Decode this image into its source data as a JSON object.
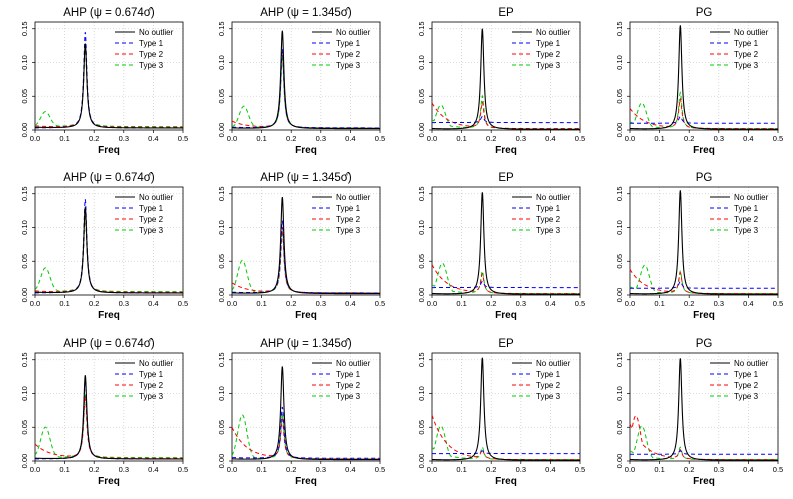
{
  "figure": {
    "rows": 3,
    "cols": 4,
    "xlabel": "Freq",
    "xlim": [
      0,
      0.5
    ],
    "ylim": [
      0,
      0.16
    ],
    "xticks": [
      "0.0",
      "0.1",
      "0.2",
      "0.3",
      "0.4",
      "0.5"
    ],
    "yticks": [
      "0.00",
      "0.05",
      "0.10",
      "0.15"
    ],
    "legend": [
      "No outlier",
      "Type 1",
      "Type 2",
      "Type 3"
    ],
    "colors": {
      "No outlier": "#000000",
      "Type 1": "#0000ff",
      "Type 2": "#ff0000",
      "Type 3": "#00cc00"
    },
    "grid": "dotted",
    "legend_position": "top-right"
  },
  "titles": {
    "ahp1": "AHP (ψ = 0.674σ̂)",
    "ahp2": "AHP (ψ = 1.345σ̂)",
    "ep": "EP",
    "pg": "PG"
  },
  "chart_data": [
    {
      "type": "line",
      "method": "ahp1",
      "row": 1,
      "title": "AHP (ψ = 0.674σ̂)",
      "xlabel": "Freq",
      "ylim": [
        0,
        0.16
      ],
      "xlim": [
        0,
        0.5
      ],
      "peak_freq": 0.17,
      "series": [
        {
          "name": "No outlier",
          "peak": 0.128,
          "base": 0.004,
          "end": 0.003
        },
        {
          "name": "Type 1",
          "peak": 0.145,
          "base": 0.003,
          "end": 0.003
        },
        {
          "name": "Type 2",
          "peak": 0.13,
          "base": 0.006,
          "end": 0.004
        },
        {
          "name": "Type 3",
          "peak": 0.12,
          "base": 0.005,
          "low_bump": [
            0.035,
            0.022
          ],
          "end": 0.005
        }
      ]
    },
    {
      "type": "line",
      "method": "ahp2",
      "row": 1,
      "title": "AHP (ψ = 1.345σ̂)",
      "xlabel": "Freq",
      "ylim": [
        0,
        0.16
      ],
      "xlim": [
        0,
        0.5
      ],
      "peak_freq": 0.17,
      "series": [
        {
          "name": "No outlier",
          "peak": 0.147,
          "base": 0.003,
          "end": 0.002
        },
        {
          "name": "Type 1",
          "peak": 0.12,
          "base": 0.004,
          "end": 0.003
        },
        {
          "name": "Type 2",
          "peak": 0.115,
          "base": 0.013,
          "end": 0.003
        },
        {
          "name": "Type 3",
          "peak": 0.11,
          "base": 0.006,
          "low_bump": [
            0.04,
            0.032
          ],
          "end": 0.003
        }
      ]
    },
    {
      "type": "line",
      "method": "ep",
      "row": 1,
      "title": "EP",
      "xlabel": "Freq",
      "ylim": [
        0,
        0.16
      ],
      "xlim": [
        0,
        0.5
      ],
      "peak_freq": 0.17,
      "series": [
        {
          "name": "No outlier",
          "peak": 0.15,
          "base": 0.002,
          "end": 0.001
        },
        {
          "name": "Type 1",
          "peak": 0.02,
          "base": 0.011,
          "end": 0.011
        },
        {
          "name": "Type 2",
          "peak": 0.04,
          "base": 0.04,
          "end": 0.002
        },
        {
          "name": "Type 3",
          "peak": 0.05,
          "base": 0.015,
          "low_bump": [
            0.03,
            0.035
          ],
          "end": 0.002
        }
      ]
    },
    {
      "type": "line",
      "method": "pg",
      "row": 1,
      "title": "PG",
      "xlabel": "Freq",
      "ylim": [
        0,
        0.16
      ],
      "xlim": [
        0,
        0.5
      ],
      "peak_freq": 0.17,
      "series": [
        {
          "name": "No outlier",
          "peak": 0.155,
          "base": 0.002,
          "end": 0.001
        },
        {
          "name": "Type 1",
          "peak": 0.02,
          "base": 0.01,
          "end": 0.01
        },
        {
          "name": "Type 2",
          "peak": 0.045,
          "base": 0.032,
          "end": 0.002
        },
        {
          "name": "Type 3",
          "peak": 0.055,
          "base": 0.012,
          "low_bump": [
            0.04,
            0.038
          ],
          "end": 0.002
        }
      ]
    },
    {
      "type": "line",
      "method": "ahp1",
      "row": 2,
      "title": "AHP (ψ = 0.674σ̂)",
      "xlabel": "Freq",
      "ylim": [
        0,
        0.16
      ],
      "xlim": [
        0,
        0.5
      ],
      "peak_freq": 0.17,
      "series": [
        {
          "name": "No outlier",
          "peak": 0.13,
          "base": 0.004,
          "end": 0.003
        },
        {
          "name": "Type 1",
          "peak": 0.142,
          "base": 0.003,
          "end": 0.003
        },
        {
          "name": "Type 2",
          "peak": 0.125,
          "base": 0.006,
          "end": 0.004
        },
        {
          "name": "Type 3",
          "peak": 0.115,
          "base": 0.006,
          "low_bump": [
            0.035,
            0.035
          ],
          "end": 0.005
        }
      ]
    },
    {
      "type": "line",
      "method": "ahp2",
      "row": 2,
      "title": "AHP (ψ = 1.345σ̂)",
      "xlabel": "Freq",
      "ylim": [
        0,
        0.16
      ],
      "xlim": [
        0,
        0.5
      ],
      "peak_freq": 0.17,
      "series": [
        {
          "name": "No outlier",
          "peak": 0.145,
          "base": 0.003,
          "end": 0.002
        },
        {
          "name": "Type 1",
          "peak": 0.11,
          "base": 0.004,
          "end": 0.003
        },
        {
          "name": "Type 2",
          "peak": 0.1,
          "base": 0.018,
          "end": 0.003
        },
        {
          "name": "Type 3",
          "peak": 0.095,
          "base": 0.007,
          "low_bump": [
            0.035,
            0.048
          ],
          "end": 0.003
        }
      ]
    },
    {
      "type": "line",
      "method": "ep",
      "row": 2,
      "title": "EP",
      "xlabel": "Freq",
      "ylim": [
        0,
        0.16
      ],
      "xlim": [
        0,
        0.5
      ],
      "peak_freq": 0.17,
      "series": [
        {
          "name": "No outlier",
          "peak": 0.152,
          "base": 0.002,
          "end": 0.001
        },
        {
          "name": "Type 1",
          "peak": 0.02,
          "base": 0.011,
          "end": 0.011
        },
        {
          "name": "Type 2",
          "peak": 0.03,
          "base": 0.045,
          "end": 0.002
        },
        {
          "name": "Type 3",
          "peak": 0.035,
          "base": 0.015,
          "low_bump": [
            0.035,
            0.045
          ],
          "end": 0.002
        }
      ]
    },
    {
      "type": "line",
      "method": "pg",
      "row": 2,
      "title": "PG",
      "xlabel": "Freq",
      "ylim": [
        0,
        0.16
      ],
      "xlim": [
        0,
        0.5
      ],
      "peak_freq": 0.17,
      "series": [
        {
          "name": "No outlier",
          "peak": 0.155,
          "base": 0.002,
          "end": 0.001
        },
        {
          "name": "Type 1",
          "peak": 0.02,
          "base": 0.01,
          "end": 0.01
        },
        {
          "name": "Type 2",
          "peak": 0.032,
          "base": 0.038,
          "end": 0.002
        },
        {
          "name": "Type 3",
          "peak": 0.035,
          "base": 0.012,
          "low_bump": [
            0.05,
            0.042
          ],
          "end": 0.002
        }
      ]
    },
    {
      "type": "line",
      "method": "ahp1",
      "row": 3,
      "title": "AHP (ψ = 0.674σ̂)",
      "xlabel": "Freq",
      "ylim": [
        0,
        0.16
      ],
      "xlim": [
        0,
        0.5
      ],
      "peak_freq": 0.17,
      "series": [
        {
          "name": "No outlier",
          "peak": 0.127,
          "base": 0.004,
          "end": 0.003
        },
        {
          "name": "Type 1",
          "peak": 0.12,
          "base": 0.003,
          "end": 0.003
        },
        {
          "name": "Type 2",
          "peak": 0.095,
          "base": 0.025,
          "end": 0.004
        },
        {
          "name": "Type 3",
          "peak": 0.1,
          "base": 0.006,
          "low_bump": [
            0.035,
            0.045
          ],
          "end": 0.005
        }
      ]
    },
    {
      "type": "line",
      "method": "ahp2",
      "row": 3,
      "title": "AHP (ψ = 1.345σ̂)",
      "xlabel": "Freq",
      "ylim": [
        0,
        0.16
      ],
      "xlim": [
        0,
        0.5
      ],
      "peak_freq": 0.17,
      "series": [
        {
          "name": "No outlier",
          "peak": 0.14,
          "base": 0.003,
          "end": 0.002
        },
        {
          "name": "Type 1",
          "peak": 0.08,
          "base": 0.005,
          "end": 0.004
        },
        {
          "name": "Type 2",
          "peak": 0.06,
          "base": 0.05,
          "end": 0.003
        },
        {
          "name": "Type 3",
          "peak": 0.07,
          "base": 0.008,
          "low_bump": [
            0.035,
            0.065
          ],
          "end": 0.003
        }
      ]
    },
    {
      "type": "line",
      "method": "ep",
      "row": 3,
      "title": "EP",
      "xlabel": "Freq",
      "ylim": [
        0,
        0.16
      ],
      "xlim": [
        0,
        0.5
      ],
      "peak_freq": 0.17,
      "series": [
        {
          "name": "No outlier",
          "peak": 0.153,
          "base": 0.002,
          "end": 0.001
        },
        {
          "name": "Type 1",
          "peak": 0.015,
          "base": 0.011,
          "end": 0.011
        },
        {
          "name": "Type 2",
          "peak": 0.015,
          "base": 0.068,
          "end": 0.002
        },
        {
          "name": "Type 3",
          "peak": 0.02,
          "base": 0.02,
          "low_bump": [
            0.03,
            0.05
          ],
          "end": 0.002
        }
      ]
    },
    {
      "type": "line",
      "method": "pg",
      "row": 3,
      "title": "PG",
      "xlabel": "Freq",
      "ylim": [
        0,
        0.16
      ],
      "xlim": [
        0,
        0.5
      ],
      "peak_freq": 0.17,
      "series": [
        {
          "name": "No outlier",
          "peak": 0.152,
          "base": 0.002,
          "end": 0.001
        },
        {
          "name": "Type 1",
          "peak": 0.015,
          "base": 0.01,
          "end": 0.01
        },
        {
          "name": "Type 2",
          "peak": 0.015,
          "base": 0.055,
          "low_bump": [
            0.02,
            0.065
          ],
          "end": 0.002
        },
        {
          "name": "Type 3",
          "peak": 0.02,
          "base": 0.015,
          "low_bump": [
            0.04,
            0.05
          ],
          "end": 0.002
        }
      ]
    }
  ]
}
